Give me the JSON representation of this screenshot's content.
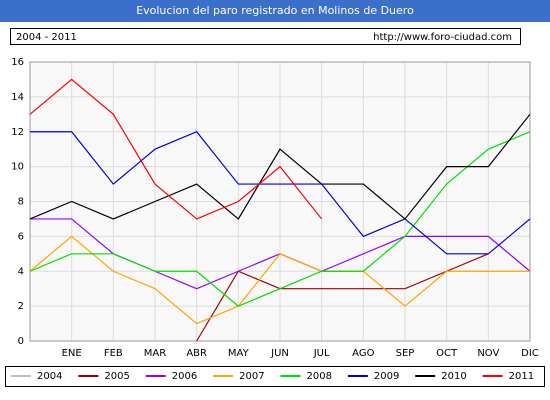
{
  "chart_data": {
    "type": "line",
    "title": "Evolucion del paro registrado en Molinos de Duero",
    "subtitle": "2004 - 2011",
    "source": "http://www.foro-ciudad.com",
    "categories": [
      null,
      "ENE",
      "FEB",
      "MAR",
      "ABR",
      "MAY",
      "JUN",
      "JUL",
      "AGO",
      "SEP",
      "OCT",
      "NOV",
      "DIC"
    ],
    "ylim": [
      0,
      16
    ],
    "yticks": [
      0,
      2,
      4,
      6,
      8,
      10,
      12,
      14,
      16
    ],
    "grid": true,
    "legend": "bottom",
    "series": [
      {
        "name": "2004",
        "color": "#c0c0c0",
        "values": [
          null,
          null,
          null,
          null,
          null,
          null,
          null,
          null,
          null,
          null,
          null,
          null,
          null
        ]
      },
      {
        "name": "2005",
        "color": "#a00000",
        "values": [
          null,
          null,
          null,
          null,
          0,
          4,
          3,
          3,
          3,
          3,
          4,
          5,
          null
        ]
      },
      {
        "name": "2006",
        "color": "#9900ff",
        "values": [
          7,
          7,
          5,
          4,
          3,
          4,
          5,
          4,
          5,
          6,
          6,
          6,
          4
        ]
      },
      {
        "name": "2007",
        "color": "#ffa500",
        "values": [
          4,
          6,
          4,
          3,
          1,
          2,
          5,
          4,
          4,
          2,
          4,
          4,
          4
        ]
      },
      {
        "name": "2008",
        "color": "#00e000",
        "values": [
          4,
          5,
          5,
          4,
          4,
          2,
          3,
          4,
          4,
          6,
          9,
          11,
          12
        ]
      },
      {
        "name": "2009",
        "color": "#0000dd",
        "values": [
          12,
          12,
          9,
          11,
          12,
          9,
          9,
          9,
          6,
          7,
          5,
          5,
          7
        ]
      },
      {
        "name": "2010",
        "color": "#000000",
        "values": [
          7,
          8,
          7,
          8,
          9,
          7,
          11,
          9,
          9,
          7,
          10,
          10,
          13
        ]
      },
      {
        "name": "2011",
        "color": "#ff0000",
        "values": [
          13,
          15,
          13,
          9,
          7,
          8,
          10,
          7,
          null,
          null,
          null,
          null,
          null
        ]
      }
    ]
  }
}
